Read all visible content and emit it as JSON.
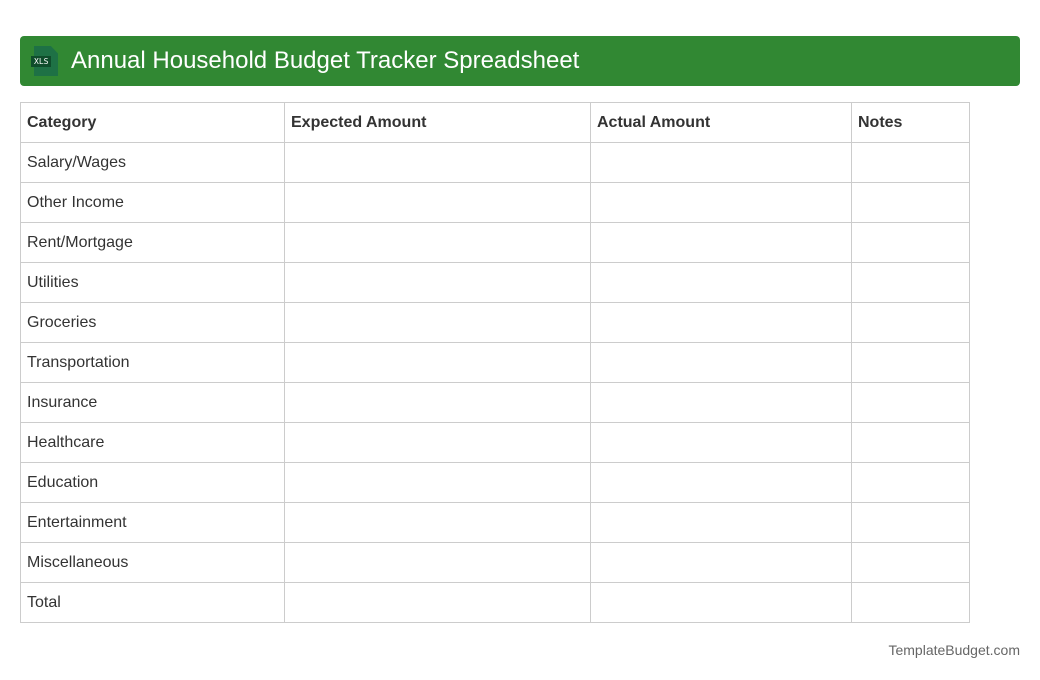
{
  "header": {
    "title": "Annual Household Budget Tracker Spreadsheet",
    "icon": "xls-file-icon",
    "icon_label": "XLS",
    "color": "#318833"
  },
  "table": {
    "columns": [
      "Category",
      "Expected Amount",
      "Actual Amount",
      "Notes"
    ],
    "rows": [
      "Salary/Wages",
      "Other Income",
      "Rent/Mortgage",
      "Utilities",
      "Groceries",
      "Transportation",
      "Insurance",
      "Healthcare",
      "Education",
      "Entertainment",
      "Miscellaneous",
      "Total"
    ]
  },
  "footer": {
    "brand": "TemplateBudget.com"
  }
}
